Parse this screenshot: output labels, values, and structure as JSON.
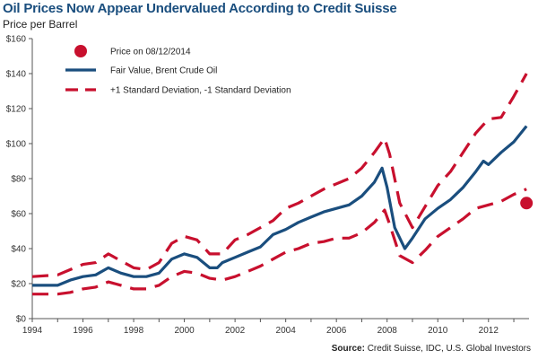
{
  "chart_data": {
    "type": "line",
    "title": "Oil Prices Now Appear Undervalued According to Credit Suisse",
    "ylabel": "Price per Barrel",
    "xlabel": "",
    "source_label": "Source:",
    "source_text": "Credit Suisse, IDC, U.S. Global Investors",
    "xlim": [
      1994,
      2013.6
    ],
    "ylim": [
      0,
      160
    ],
    "x_ticks": [
      1994,
      1996,
      1998,
      2000,
      2002,
      2004,
      2006,
      2008,
      2010,
      2012
    ],
    "x_tick_labels": [
      "1994",
      "1996",
      "1998",
      "2000",
      "2002",
      "2004",
      "2006",
      "2008",
      "2010",
      "2012"
    ],
    "y_ticks": [
      0,
      20,
      40,
      60,
      80,
      100,
      120,
      140,
      160
    ],
    "y_tick_labels": [
      "$0",
      "$20",
      "$40",
      "$60",
      "$80",
      "$100",
      "$120",
      "$140",
      "$160"
    ],
    "grid": false,
    "legend_position": "top-left",
    "colors": {
      "fair_value": "#1a4e7e",
      "std_dev": "#c8102e",
      "point": "#c8102e"
    },
    "legend": [
      {
        "label": "Price on 08/12/2014",
        "kind": "point"
      },
      {
        "label": "Fair Value, Brent Crude Oil",
        "kind": "solid"
      },
      {
        "label": "+1 Standard Deviation, -1 Standard Deviation",
        "kind": "dashed"
      }
    ],
    "series": [
      {
        "name": "Fair Value, Brent Crude Oil",
        "x": [
          1994,
          1995,
          1995.5,
          1996,
          1996.5,
          1997,
          1997.5,
          1998,
          1998.5,
          1999,
          1999.5,
          2000,
          2000.5,
          2001,
          2001.3,
          2001.5,
          2002,
          2002.5,
          2003,
          2003.5,
          2004,
          2004.5,
          2005,
          2005.5,
          2006,
          2006.5,
          2007,
          2007.5,
          2007.8,
          2008,
          2008.3,
          2008.7,
          2009,
          2009.5,
          2010,
          2010.5,
          2011,
          2011.5,
          2011.8,
          2012,
          2012.5,
          2013,
          2013.5
        ],
        "y": [
          19,
          19,
          22,
          24,
          25,
          29,
          26,
          24,
          24,
          26,
          34,
          37,
          35,
          29,
          29,
          32,
          35,
          38,
          41,
          48,
          51,
          55,
          58,
          61,
          63,
          65,
          70,
          78,
          86,
          75,
          52,
          40,
          46,
          57,
          63,
          68,
          75,
          84,
          90,
          88,
          95,
          101,
          110
        ]
      },
      {
        "name": "+1 Standard Deviation",
        "x": [
          1994,
          1995,
          1995.5,
          1996,
          1996.5,
          1997,
          1997.5,
          1998,
          1998.5,
          1999,
          1999.5,
          2000,
          2000.5,
          2001,
          2001.5,
          2002,
          2002.5,
          2003,
          2003.5,
          2004,
          2004.5,
          2005,
          2005.5,
          2006,
          2006.5,
          2007,
          2007.5,
          2007.9,
          2008.1,
          2008.5,
          2009,
          2009.5,
          2010,
          2010.5,
          2011,
          2011.5,
          2012,
          2012.5,
          2013,
          2013.5
        ],
        "y": [
          24,
          25,
          28,
          31,
          32,
          37,
          33,
          29,
          28,
          32,
          43,
          47,
          45,
          37,
          37,
          45,
          48,
          52,
          56,
          63,
          66,
          70,
          74,
          77,
          80,
          86,
          95,
          103,
          94,
          66,
          52,
          64,
          76,
          84,
          95,
          106,
          114,
          115,
          127,
          140
        ]
      },
      {
        "name": "-1 Standard Deviation",
        "x": [
          1994,
          1995,
          1995.5,
          1996,
          1996.5,
          1997,
          1997.5,
          1998,
          1998.5,
          1999,
          1999.5,
          2000,
          2000.5,
          2001,
          2001.5,
          2002,
          2002.5,
          2003,
          2003.5,
          2004,
          2004.5,
          2005,
          2005.5,
          2006,
          2006.5,
          2007,
          2007.5,
          2007.9,
          2008.1,
          2008.5,
          2009,
          2009.5,
          2010,
          2010.5,
          2011,
          2011.5,
          2012,
          2012.5,
          2013,
          2013.5
        ],
        "y": [
          14,
          14,
          15,
          17,
          18,
          21,
          19,
          17,
          17,
          19,
          24,
          27,
          26,
          23,
          22,
          24,
          27,
          30,
          34,
          38,
          40,
          43,
          44,
          46,
          46,
          49,
          55,
          62,
          54,
          36,
          32,
          39,
          47,
          52,
          57,
          63,
          65,
          67,
          71,
          74
        ]
      }
    ],
    "point": {
      "name": "Price on 08/12/2014",
      "x": 2013.5,
      "y": 66
    }
  }
}
